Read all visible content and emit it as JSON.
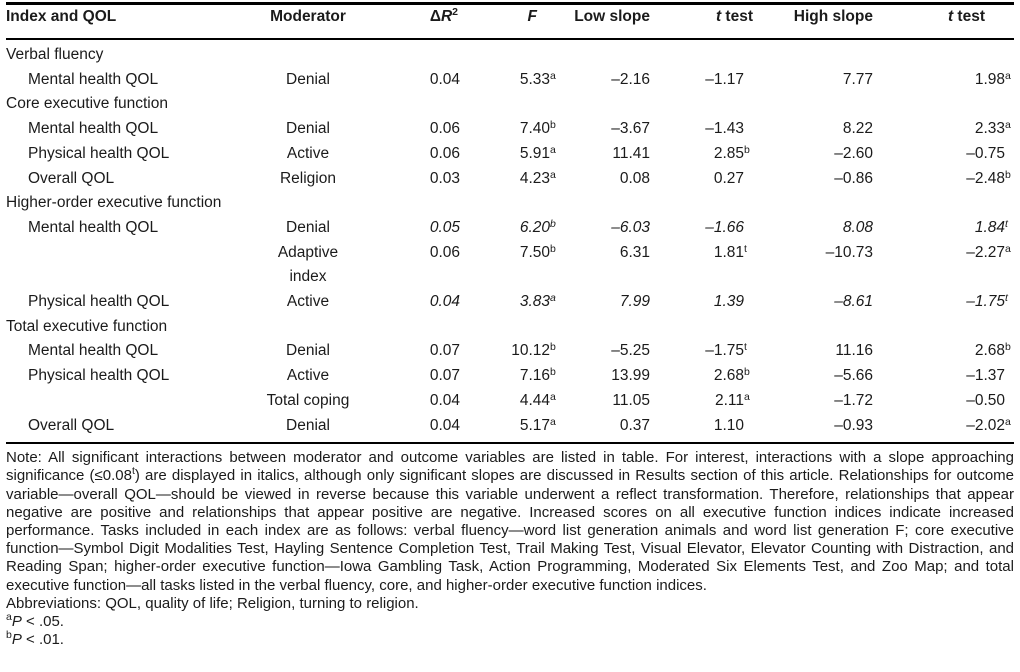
{
  "colors": {
    "background": "#ffffff",
    "text": "#1b1b1b",
    "rule": "#000000"
  },
  "table": {
    "headers": [
      {
        "key": "index",
        "label": "Index and QOL"
      },
      {
        "key": "moderator",
        "label": "Moderator"
      },
      {
        "key": "delta-r2",
        "label": "Δ*R*^2^"
      },
      {
        "key": "f",
        "label": "*F*"
      },
      {
        "key": "low-slope",
        "label": "Low slope"
      },
      {
        "key": "t-test-low",
        "label": "*t* test"
      },
      {
        "key": "high-slope",
        "label": "High slope"
      },
      {
        "key": "t-test-high",
        "label": "*t* test"
      }
    ],
    "rows": [
      {
        "type": "section",
        "label": "Verbal fluency"
      },
      {
        "type": "data",
        "italic": false,
        "cells": [
          "Mental health QOL",
          "Denial",
          "0.04",
          "5.33^a^",
          "–2.16",
          "–1.17",
          "7.77",
          "1.98^a^"
        ]
      },
      {
        "type": "section",
        "label": "Core executive function"
      },
      {
        "type": "data",
        "italic": false,
        "cells": [
          "Mental health QOL",
          "Denial",
          "0.06",
          "7.40^b^",
          "–3.67",
          "–1.43",
          "8.22",
          "2.33^a^"
        ]
      },
      {
        "type": "data",
        "italic": false,
        "cells": [
          "Physical health QOL",
          "Active",
          "0.06",
          "5.91^a^",
          "11.41",
          "2.85^b^",
          "–2.60",
          "–0.75"
        ]
      },
      {
        "type": "data",
        "italic": false,
        "cells": [
          "Overall QOL",
          "Religion",
          "0.03",
          "4.23^a^",
          "0.08",
          "0.27",
          "–0.86",
          "–2.48^b^"
        ]
      },
      {
        "type": "section",
        "label": "Higher-order executive function"
      },
      {
        "type": "data",
        "italic": true,
        "cells": [
          "Mental health QOL",
          "Denial",
          "0.05",
          "6.20^b^",
          "–6.03",
          "–1.66",
          "8.08",
          "1.84^t^"
        ]
      },
      {
        "type": "data",
        "italic": false,
        "cells": [
          "",
          "Adaptive\nindex",
          "0.06",
          "7.50^b^",
          "6.31",
          "1.81^t^",
          "–10.73",
          "–2.27^a^"
        ]
      },
      {
        "type": "data",
        "italic": true,
        "cells": [
          "Physical health QOL",
          "Active",
          "0.04",
          "3.83^a^",
          "7.99",
          "1.39",
          "–8.61",
          "–1.75^t^"
        ]
      },
      {
        "type": "section",
        "label": "Total executive function"
      },
      {
        "type": "data",
        "italic": false,
        "cells": [
          "Mental health QOL",
          "Denial",
          "0.07",
          "10.12^b^",
          "–5.25",
          "–1.75^t^",
          "11.16",
          "2.68^b^"
        ]
      },
      {
        "type": "data",
        "italic": false,
        "cells": [
          "Physical health QOL",
          "Active",
          "0.07",
          "7.16^b^",
          "13.99",
          "2.68^b^",
          "–5.66",
          "–1.37"
        ]
      },
      {
        "type": "data",
        "italic": false,
        "cells": [
          "",
          "Total coping",
          "0.04",
          "4.44^a^",
          "11.05",
          "2.11^a^",
          "–1.72",
          "–0.50"
        ]
      },
      {
        "type": "data",
        "italic": false,
        "cells": [
          "Overall QOL",
          "Denial",
          "0.04",
          "5.17^a^",
          "0.37",
          "1.10",
          "–0.93",
          "–2.02^a^"
        ]
      }
    ]
  },
  "notes": {
    "note": "Note: All significant interactions between moderator and outcome variables are listed in table. For interest, interactions with a slope approaching significance (≤0.08^t^) are displayed in italics, although only significant slopes are discussed in Results section of this article. Relationships for outcome variable—overall QOL—should be viewed in reverse because this variable underwent a reflect transformation. Therefore, relationships that appear negative are positive and relationships that appear positive are negative. Increased scores on all executive function indices indicate increased performance. Tasks included in each index are as follows: verbal fluency—word list generation animals and word list generation F; core executive function—Symbol Digit Modalities Test, Hayling Sentence Completion Test, Trail Making Test, Visual Elevator, Elevator Counting with Distraction, and Reading Span; higher-order executive function—Iowa Gambling Task, Action Programming, Moderated Six Elements Test, and Zoo Map; and total executive function—all tasks listed in the verbal fluency, core, and higher-order executive function indices.",
    "abbreviations": "Abbreviations: QOL, quality of life; Religion, turning to religion.",
    "footnote_a": "^a^*P* < .05.",
    "footnote_b": "^b^*P* < .01."
  }
}
